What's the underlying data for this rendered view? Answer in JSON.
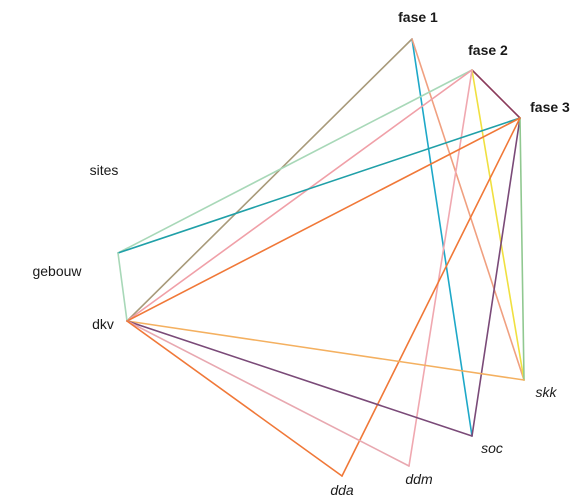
{
  "labels": {
    "fase1": "fase 1",
    "fase2": "fase 2",
    "fase3": "fase 3",
    "sites": "sites",
    "gebouw": "gebouw",
    "dkv": "dkv",
    "skk": "skk",
    "soc": "soc",
    "ddm": "ddm",
    "dda": "dda"
  },
  "edges": [
    {
      "from": "fase1",
      "to": "dkv",
      "color": "#a89a7a"
    },
    {
      "from": "fase1",
      "to": "soc",
      "color": "#1ea8c8"
    },
    {
      "from": "fase1",
      "to": "skk",
      "color": "#f0a080"
    },
    {
      "from": "fase2",
      "to": "gebouw",
      "color": "#a8d8b8"
    },
    {
      "from": "fase2",
      "to": "dkv",
      "color": "#f0a0a8"
    },
    {
      "from": "fase2",
      "to": "fase3",
      "color": "#8a3a5a"
    },
    {
      "from": "fase2",
      "to": "skk",
      "color": "#f0e040"
    },
    {
      "from": "fase2",
      "to": "ddm",
      "color": "#f0a8b0"
    },
    {
      "from": "fase3",
      "to": "gebouw",
      "color": "#20a0a8"
    },
    {
      "from": "fase3",
      "to": "dkv",
      "color": "#f07838"
    },
    {
      "from": "fase3",
      "to": "soc",
      "color": "#7a4a78"
    },
    {
      "from": "fase3",
      "to": "skk",
      "color": "#90c890"
    },
    {
      "from": "fase3",
      "to": "dda",
      "color": "#f07838"
    },
    {
      "from": "gebouw",
      "to": "dkv",
      "color": "#a8d8b8"
    },
    {
      "from": "dkv",
      "to": "skk",
      "color": "#f4b060"
    },
    {
      "from": "dkv",
      "to": "soc",
      "color": "#7a4a78"
    },
    {
      "from": "dkv",
      "to": "ddm",
      "color": "#e8a8b0"
    },
    {
      "from": "dkv",
      "to": "dda",
      "color": "#f07838"
    }
  ]
}
